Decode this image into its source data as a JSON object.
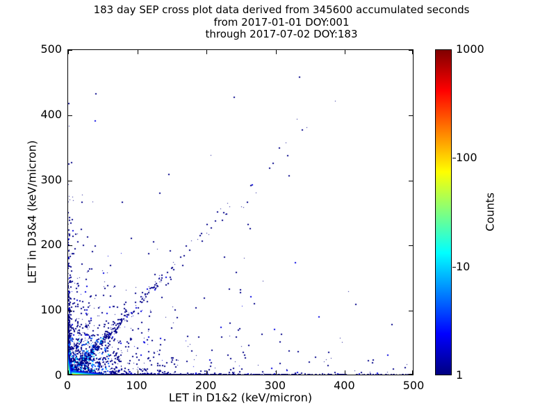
{
  "chart_data": {
    "type": "scatter",
    "subtype": "2D-histogram cross plot with log-scaled count colormap",
    "title_lines": [
      "183 day SEP cross plot data derived from 345600 accumulated seconds",
      "from 2017-01-01 DOY:001",
      "through 2017-07-02 DOY:183"
    ],
    "xlabel": "LET in D1&2 (keV/micron)",
    "ylabel": "LET in D3&4 (keV/micron)",
    "xlim": [
      0,
      500
    ],
    "ylim": [
      0,
      500
    ],
    "x_ticks": [
      0,
      100,
      200,
      300,
      400,
      500
    ],
    "y_ticks": [
      0,
      100,
      200,
      300,
      400,
      500
    ],
    "grid": false,
    "colorbar": {
      "label": "Counts",
      "scale": "log",
      "vmin": 1,
      "vmax": 1000,
      "ticks": [
        1,
        10,
        100,
        1000
      ],
      "colormap": "jet",
      "gradient": [
        [
          0,
          "#000080"
        ],
        [
          0.125,
          "#0000ff"
        ],
        [
          0.375,
          "#00ffff"
        ],
        [
          0.625,
          "#ffff00"
        ],
        [
          0.875,
          "#ff0000"
        ],
        [
          1,
          "#800000"
        ]
      ]
    },
    "point_colors": {
      "base": "#000089",
      "mid_blue": "#0000e0",
      "near_blue": "#0055ff",
      "near_cyan": "#00cfff"
    },
    "distribution": {
      "seed": 20170101,
      "description": "Hot core at origin (peak ~900 counts) fading red>yellow>cyan>blue; dense count ridges along both axes (x-ridge reaches 500, y-ridge fades by ~270); diagonal ion band y~1.1x dense to ~70 then sparse; diffuse low-LET cloud; isolated high-LET outliers along the diagonal up to (334,458).",
      "components": [
        {
          "kind": "ridge_rand",
          "axis": "x",
          "n": 820,
          "scale": 70,
          "sigma": 1.8
        },
        {
          "kind": "ridge_rand",
          "axis": "x",
          "n": 260,
          "uniform": [
            0,
            500
          ],
          "sigma": 1.5
        },
        {
          "kind": "ridge_rand",
          "axis": "y",
          "n": 470,
          "scale": 55,
          "sigma": 1.8
        },
        {
          "kind": "ridge_rand",
          "axis": "y",
          "n": 30,
          "uniform": [
            0,
            300
          ],
          "sigma": 1.6
        },
        {
          "kind": "diag_rand",
          "n": 430,
          "scale": 48,
          "slope": 1.1,
          "sigma": 3
        },
        {
          "kind": "diag_rand",
          "n": 28,
          "uniform": [
            60,
            240
          ],
          "slope": 1.1,
          "sigma": 7
        },
        {
          "kind": "cloud_rand",
          "n": 750,
          "sx": 36,
          "sy": 36
        },
        {
          "kind": "cloud_rand",
          "n": 280,
          "sx": 105,
          "sy": 58
        },
        {
          "kind": "band_rand",
          "n": 60,
          "x": [
            0,
            500
          ],
          "yscale": 12
        },
        {
          "kind": "column_rand",
          "n": 9,
          "cx": 252,
          "csx": 6,
          "y": [
            30,
            265
          ]
        },
        {
          "kind": "column_rand",
          "n": 35,
          "cx": 10,
          "csx": 12,
          "y": [
            50,
            285
          ]
        },
        {
          "kind": "corner_heat",
          "peak": 900,
          "lambda": 2,
          "cell": 2,
          "extent": 12
        },
        {
          "kind": "ridge_heat",
          "axis": "x",
          "peak": 150,
          "lambda": 14,
          "cell": 2,
          "len": 50,
          "thickness": [
            1,
            0.22,
            0.05
          ]
        },
        {
          "kind": "ridge_heat",
          "axis": "y",
          "peak": 120,
          "lambda": 8,
          "cell": 2,
          "len": 36,
          "thickness": [
            1,
            0.22,
            0.05
          ]
        }
      ],
      "outliers": [
        [
          334,
          458
        ],
        [
          240,
          427
        ],
        [
          331,
          393
        ],
        [
          338,
          377
        ],
        [
          315,
          357
        ],
        [
          305,
          350
        ],
        [
          317,
          338
        ],
        [
          207,
          338
        ],
        [
          291,
          319
        ],
        [
          319,
          307
        ],
        [
          272,
          280
        ],
        [
          259,
          267
        ],
        [
          231,
          264
        ],
        [
          254,
          258
        ],
        [
          146,
          309
        ],
        [
          36,
          266
        ],
        [
          78,
          267
        ],
        [
          21,
          277
        ],
        [
          2,
          383
        ],
        [
          1,
          325
        ],
        [
          5,
          327
        ],
        [
          397,
          51
        ],
        [
          282,
          145
        ],
        [
          260,
          232
        ],
        [
          255,
          180
        ],
        [
          251,
          259
        ],
        [
          490,
          17
        ],
        [
          470,
          11
        ],
        [
          441,
          24
        ],
        [
          415,
          7
        ],
        [
          376,
          16
        ],
        [
          357,
          29
        ]
      ]
    }
  }
}
